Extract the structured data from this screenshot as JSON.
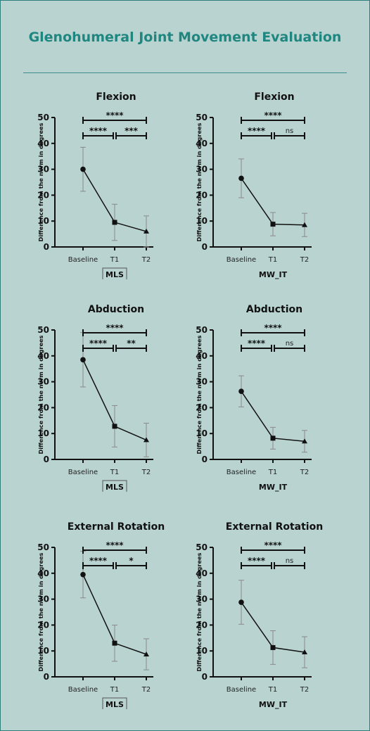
{
  "page": {
    "title": "Glenohumeral Joint Movement Evaluation"
  },
  "colors": {
    "background": "#b9d3d1",
    "title": "#1f8680",
    "divider": "#3e8d88",
    "axis": "#111111",
    "error_bar": "#8a8a8a"
  },
  "chart_data": [
    {
      "type": "line",
      "panel": "flexion-mls",
      "title": "Flexion",
      "xlabel": "MLS",
      "xlabel_boxed": true,
      "ylabel": "Difference from the norm in degrees",
      "categories": [
        "Baseline",
        "T1",
        "T2"
      ],
      "values": [
        30,
        9.5,
        6
      ],
      "error": [
        8.5,
        7,
        6
      ],
      "markers": [
        "circle",
        "square",
        "triangle"
      ],
      "ylim": [
        0,
        50
      ],
      "yticks": [
        0,
        10,
        20,
        30,
        40,
        50
      ],
      "significance": [
        {
          "from": 0,
          "to": 2,
          "label": "****",
          "level": "top"
        },
        {
          "from": 0,
          "to": 1,
          "label": "****",
          "level": "low"
        },
        {
          "from": 1,
          "to": 2,
          "label": "***",
          "level": "low"
        }
      ]
    },
    {
      "type": "line",
      "panel": "flexion-mwit",
      "title": "Flexion",
      "xlabel": "MW_IT",
      "xlabel_boxed": false,
      "ylabel": "Difference from the norm in degrees",
      "categories": [
        "Baseline",
        "T1",
        "T2"
      ],
      "values": [
        26.5,
        8.8,
        8.5
      ],
      "error": [
        7.5,
        4.5,
        4.5
      ],
      "markers": [
        "circle",
        "square",
        "triangle"
      ],
      "ylim": [
        0,
        50
      ],
      "yticks": [
        0,
        10,
        20,
        30,
        40,
        50
      ],
      "significance": [
        {
          "from": 0,
          "to": 2,
          "label": "****",
          "level": "top"
        },
        {
          "from": 0,
          "to": 1,
          "label": "****",
          "level": "low"
        },
        {
          "from": 1,
          "to": 2,
          "label": "ns",
          "level": "low"
        }
      ]
    },
    {
      "type": "line",
      "panel": "abduction-mls",
      "title": "Abduction",
      "xlabel": "MLS",
      "xlabel_boxed": true,
      "ylabel": "Difference from the norm in degrees",
      "categories": [
        "Baseline",
        "T1",
        "T2"
      ],
      "values": [
        38.5,
        12.8,
        7.5
      ],
      "error": [
        10.5,
        8,
        6.5
      ],
      "markers": [
        "circle",
        "square",
        "triangle"
      ],
      "ylim": [
        0,
        50
      ],
      "yticks": [
        0,
        10,
        20,
        30,
        40,
        50
      ],
      "significance": [
        {
          "from": 0,
          "to": 2,
          "label": "****",
          "level": "top"
        },
        {
          "from": 0,
          "to": 1,
          "label": "****",
          "level": "low"
        },
        {
          "from": 1,
          "to": 2,
          "label": "**",
          "level": "low"
        }
      ]
    },
    {
      "type": "line",
      "panel": "abduction-mwit",
      "title": "Abduction",
      "xlabel": "MW_IT",
      "xlabel_boxed": false,
      "ylabel": "Difference from the norm in degrees",
      "categories": [
        "Baseline",
        "T1",
        "T2"
      ],
      "values": [
        26.3,
        8.2,
        7
      ],
      "error": [
        6,
        4.2,
        4.2
      ],
      "markers": [
        "circle",
        "square",
        "triangle"
      ],
      "ylim": [
        0,
        50
      ],
      "yticks": [
        0,
        10,
        20,
        30,
        40,
        50
      ],
      "significance": [
        {
          "from": 0,
          "to": 2,
          "label": "****",
          "level": "top"
        },
        {
          "from": 0,
          "to": 1,
          "label": "****",
          "level": "low"
        },
        {
          "from": 1,
          "to": 2,
          "label": "ns",
          "level": "low"
        }
      ]
    },
    {
      "type": "line",
      "panel": "external-rotation-mls",
      "title": "External Rotation",
      "xlabel": "MLS",
      "xlabel_boxed": true,
      "ylabel": "Difference from the norm in degrees",
      "categories": [
        "Baseline",
        "T1",
        "T2"
      ],
      "values": [
        39.5,
        13,
        8.7
      ],
      "error": [
        9,
        7,
        6
      ],
      "markers": [
        "circle",
        "square",
        "triangle"
      ],
      "ylim": [
        0,
        50
      ],
      "yticks": [
        0,
        10,
        20,
        30,
        40,
        50
      ],
      "significance": [
        {
          "from": 0,
          "to": 2,
          "label": "****",
          "level": "top"
        },
        {
          "from": 0,
          "to": 1,
          "label": "****",
          "level": "low"
        },
        {
          "from": 1,
          "to": 2,
          "label": "*",
          "level": "low"
        }
      ]
    },
    {
      "type": "line",
      "panel": "external-rotation-mwit",
      "title": "External Rotation",
      "xlabel": "MW_IT",
      "xlabel_boxed": false,
      "ylabel": "Difference from the norm in degrees",
      "categories": [
        "Baseline",
        "T1",
        "T2"
      ],
      "values": [
        28.8,
        11.3,
        9.5
      ],
      "error": [
        8.5,
        6.5,
        6
      ],
      "markers": [
        "circle",
        "square",
        "triangle"
      ],
      "ylim": [
        0,
        50
      ],
      "yticks": [
        0,
        10,
        20,
        30,
        40,
        50
      ],
      "significance": [
        {
          "from": 0,
          "to": 2,
          "label": "****",
          "level": "top"
        },
        {
          "from": 0,
          "to": 1,
          "label": "****",
          "level": "low"
        },
        {
          "from": 1,
          "to": 2,
          "label": "ns",
          "level": "low"
        }
      ]
    }
  ]
}
